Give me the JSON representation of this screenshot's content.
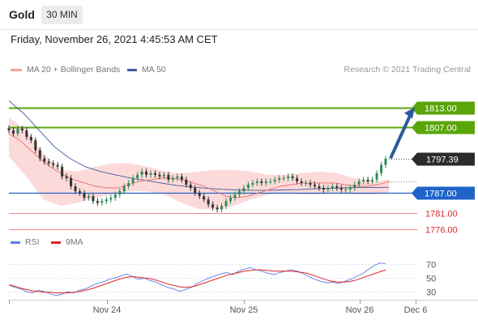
{
  "header": {
    "symbol": "Gold",
    "timeframe": "30 MIN"
  },
  "datetime": "Friday, November 26, 2021 4:45:53 AM CET",
  "legend": {
    "ma20_label": "MA 20 + Bollinger Bands",
    "ma50_label": "MA 50",
    "rsi_label": "RSI",
    "ma9_label": "9MA"
  },
  "copyright": "Research © 2021 Trading Central",
  "colors": {
    "resistance": "#5aa50a",
    "pivot": "#1f63c9",
    "support": "#f08a8a",
    "bands_fill": "#fbd4d2",
    "ma20": "#e9726d",
    "ma50": "#405a9d",
    "arrow": "#2a5a9e",
    "last_price": "#2b2b2b",
    "rsi": "#5b7de0",
    "rsi_ma9": "#e02424",
    "candle_up": "#2e8b57",
    "candle_down": "#333333"
  },
  "chart_data": [
    {
      "type": "candlestick",
      "title": "Gold",
      "timeframe": "30 MIN",
      "x_ticks": [
        "Nov 24",
        "Nov 25",
        "Nov 26",
        "Dec 6"
      ],
      "ylim": [
        1773,
        1821
      ],
      "last_price": {
        "value": 1797.39,
        "label": "1797.39"
      },
      "levels": [
        {
          "kind": "resistance",
          "value": 1813.0,
          "label": "1813.00"
        },
        {
          "kind": "resistance",
          "value": 1807.0,
          "label": "1807.00"
        },
        {
          "kind": "pivot",
          "value": 1787.0,
          "label": "1787.00"
        },
        {
          "kind": "support",
          "value": 1781.0,
          "label": "1781.00"
        },
        {
          "kind": "support",
          "value": 1776.0,
          "label": "1776.00"
        }
      ],
      "projection": {
        "from": 1797.5,
        "to": 1813.0
      },
      "price_close": [
        1806,
        1805,
        1806.5,
        1806,
        1804,
        1803,
        1800,
        1797.5,
        1796.5,
        1796,
        1795.5,
        1795,
        1792,
        1791.5,
        1789,
        1787.5,
        1787,
        1785.5,
        1786,
        1784.5,
        1784,
        1784.5,
        1785,
        1785.5,
        1786.5,
        1787.5,
        1789,
        1790,
        1791.5,
        1792.5,
        1793.5,
        1792.5,
        1793,
        1792.5,
        1792,
        1792.5,
        1791,
        1791.5,
        1792,
        1791,
        1789.5,
        1788.5,
        1787,
        1786,
        1785,
        1783.5,
        1782.5,
        1782,
        1783,
        1784.5,
        1785.5,
        1786.5,
        1787.5,
        1788.5,
        1789.5,
        1790,
        1790.5,
        1790,
        1790.5,
        1790.5,
        1791,
        1791.5,
        1791.5,
        1792,
        1791.5,
        1790.5,
        1790,
        1790,
        1789.5,
        1789,
        1788.5,
        1788,
        1788.5,
        1789,
        1788.5,
        1788,
        1788,
        1788.5,
        1789.5,
        1790.5,
        1791,
        1790.5,
        1791,
        1793,
        1795.5,
        1797.4
      ],
      "ma20_values": [
        1805,
        1803,
        1800,
        1797,
        1794.5,
        1792.5,
        1791,
        1790,
        1789,
        1788.5,
        1788.5,
        1789.5,
        1790.5,
        1791,
        1791.5,
        1791.5,
        1791,
        1790,
        1789,
        1787.5,
        1786,
        1785.5,
        1786,
        1787,
        1788,
        1789,
        1789.5,
        1790,
        1790,
        1790,
        1790,
        1789.5,
        1789,
        1789,
        1789.5,
        1790.5
      ],
      "ma50_values": [
        1815,
        1811,
        1806,
        1801,
        1797.5,
        1795,
        1793.5,
        1792.5,
        1791.5,
        1790.8,
        1790,
        1789.3,
        1788.8,
        1788.4,
        1788.1,
        1787.9,
        1787.8,
        1787.8,
        1787.9,
        1788,
        1788.2,
        1788.4,
        1788.5,
        1788.6,
        1788.6,
        1788.7
      ],
      "bb_upper": [
        1810,
        1806,
        1799,
        1794,
        1793.5,
        1795,
        1796,
        1796,
        1795,
        1793.5,
        1793,
        1793.5,
        1794,
        1794,
        1793.5,
        1792.5,
        1792.5,
        1793,
        1793.5,
        1793,
        1791.5,
        1790.5,
        1791
      ],
      "bb_lower": [
        1798,
        1792,
        1785,
        1783,
        1784,
        1785.5,
        1786.5,
        1787.5,
        1787.5,
        1786.5,
        1784,
        1782,
        1782,
        1783,
        1785,
        1786.5,
        1787,
        1786.5,
        1786.5,
        1787,
        1786.5,
        1786.5,
        1787
      ]
    },
    {
      "type": "line",
      "title": "RSI",
      "yticks": [
        30,
        50,
        70
      ],
      "ylim": [
        18,
        86
      ],
      "series": [
        {
          "name": "RSI",
          "values": [
            40,
            36,
            34,
            30,
            28,
            32,
            30,
            27,
            24,
            26,
            30,
            28,
            32,
            34,
            38,
            42,
            44,
            48,
            50,
            53,
            56,
            52,
            48,
            50,
            46,
            44,
            40,
            36,
            34,
            30,
            33,
            36,
            42,
            46,
            50,
            53,
            56,
            58,
            55,
            60,
            63,
            65,
            62,
            60,
            57,
            55,
            58,
            60,
            62,
            60,
            56,
            52,
            48,
            45,
            43,
            44,
            42,
            45,
            48,
            52,
            56,
            62,
            68,
            72,
            71
          ]
        },
        {
          "name": "9MA",
          "values": [
            40,
            38,
            35,
            33,
            31,
            30,
            29,
            29,
            28,
            28,
            28,
            29,
            30,
            32,
            34,
            37,
            40,
            43,
            46,
            49,
            51,
            52,
            51,
            50,
            49,
            47,
            44,
            41,
            39,
            37,
            36,
            37,
            39,
            42,
            45,
            48,
            51,
            54,
            56,
            58,
            60,
            61,
            62,
            62,
            61,
            60,
            60,
            60,
            60,
            59,
            58,
            56,
            53,
            50,
            47,
            45,
            44,
            44,
            45,
            47,
            50,
            53,
            56,
            59,
            62
          ]
        }
      ]
    }
  ]
}
